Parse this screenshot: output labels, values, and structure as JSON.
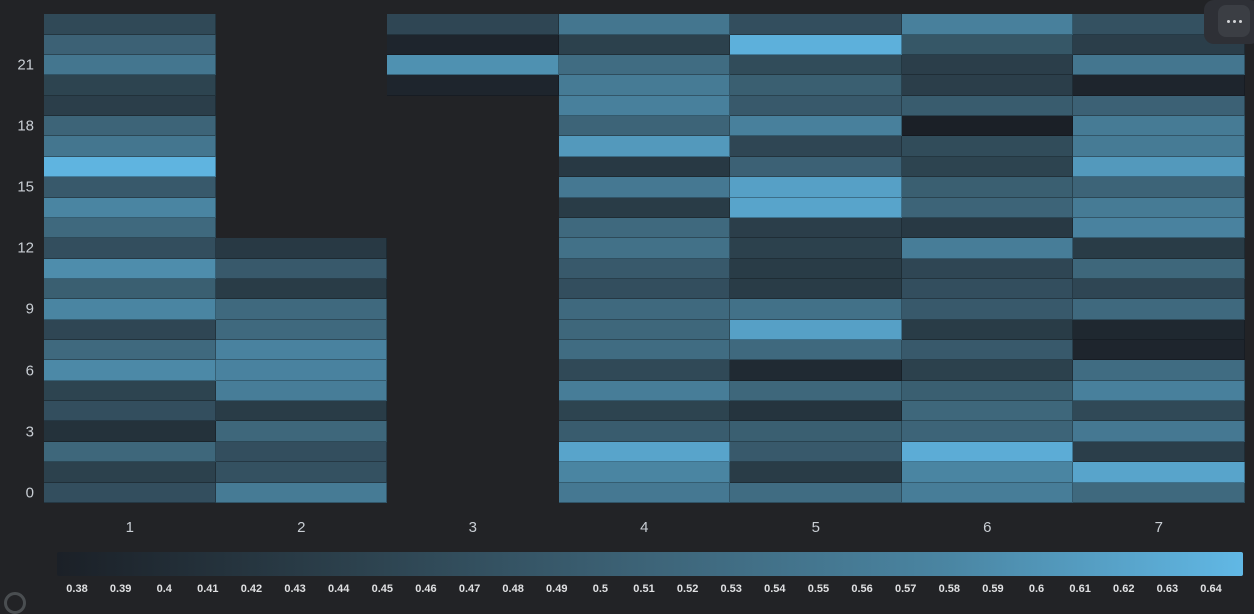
{
  "panel": {
    "background": "#222326",
    "menu_button": {
      "icon": "ellipsis-menu"
    }
  },
  "chart_data": {
    "type": "heatmap",
    "title": "",
    "x_categories": [
      "1",
      "2",
      "3",
      "4",
      "5",
      "6",
      "7"
    ],
    "y_axis": {
      "unit": "hour-of-day",
      "range": [
        0,
        23
      ],
      "ticks": [
        {
          "hour": 21,
          "label": "21"
        },
        {
          "hour": 18,
          "label": "18"
        },
        {
          "hour": 15,
          "label": "15"
        },
        {
          "hour": 12,
          "label": "12"
        },
        {
          "hour": 9,
          "label": "9"
        },
        {
          "hour": 6,
          "label": "6"
        },
        {
          "hour": 3,
          "label": "3"
        },
        {
          "hour": 0,
          "label": "0"
        }
      ]
    },
    "color_scale": {
      "min": 0.38,
      "max": 0.64,
      "stops": [
        "#1b2027",
        "#2c414d",
        "#3d6478",
        "#4a85a2",
        "#61b8e5"
      ],
      "tick_labels": [
        "0.38",
        "0.39",
        "0.4",
        "0.41",
        "0.42",
        "0.43",
        "0.44",
        "0.45",
        "0.46",
        "0.47",
        "0.48",
        "0.49",
        "0.5",
        "0.51",
        "0.52",
        "0.53",
        "0.54",
        "0.55",
        "0.56",
        "0.57",
        "0.58",
        "0.59",
        "0.6",
        "0.61",
        "0.62",
        "0.63",
        "0.64"
      ]
    },
    "series": [
      {
        "name": "1",
        "values_by_hour": [
          0.47,
          0.445,
          0.515,
          0.415,
          0.47,
          0.45,
          0.58,
          0.52,
          0.455,
          0.575,
          0.5,
          0.585,
          0.47,
          0.52,
          0.575,
          0.49,
          0.635,
          0.545,
          0.51,
          0.44,
          0.45,
          0.545,
          0.505,
          0.46
        ]
      },
      {
        "name": "2",
        "values_by_hour": [
          0.555,
          0.475,
          0.47,
          0.515,
          0.435,
          0.56,
          0.57,
          0.57,
          0.52,
          0.52,
          0.435,
          0.49,
          0.43,
          null,
          null,
          null,
          null,
          null,
          null,
          null,
          null,
          null,
          null,
          null
        ]
      },
      {
        "name": "3",
        "values_by_hour": [
          null,
          null,
          null,
          null,
          null,
          null,
          null,
          null,
          null,
          null,
          null,
          null,
          null,
          null,
          null,
          null,
          null,
          null,
          null,
          null,
          0.39,
          0.59,
          0.39,
          0.455
        ]
      },
      {
        "name": "4",
        "values_by_hour": [
          0.55,
          0.575,
          0.615,
          0.495,
          0.45,
          0.56,
          0.46,
          0.525,
          0.515,
          0.52,
          0.47,
          0.49,
          0.535,
          0.52,
          0.435,
          0.55,
          0.43,
          0.6,
          0.51,
          0.565,
          0.555,
          0.525,
          0.445,
          0.545
        ]
      },
      {
        "name": "5",
        "values_by_hour": [
          0.525,
          0.435,
          0.49,
          0.5,
          0.42,
          0.515,
          0.4,
          0.52,
          0.61,
          0.535,
          0.435,
          0.435,
          0.445,
          0.44,
          0.615,
          0.61,
          0.505,
          0.455,
          0.565,
          0.49,
          0.5,
          0.465,
          0.63,
          0.47
        ]
      },
      {
        "name": "6",
        "values_by_hour": [
          0.56,
          0.575,
          0.625,
          0.51,
          0.515,
          0.5,
          0.445,
          0.49,
          0.435,
          0.49,
          0.47,
          0.455,
          0.56,
          0.43,
          0.51,
          0.5,
          0.45,
          0.465,
          0.38,
          0.495,
          0.44,
          0.44,
          0.485,
          0.565
        ]
      },
      {
        "name": "7",
        "values_by_hour": [
          0.52,
          0.615,
          0.44,
          0.55,
          0.46,
          0.565,
          0.525,
          0.39,
          0.395,
          0.52,
          0.455,
          0.515,
          0.435,
          0.57,
          0.555,
          0.51,
          0.6,
          0.555,
          0.555,
          0.505,
          0.39,
          0.545,
          0.44,
          0.475
        ]
      }
    ],
    "legend_position": "bottom",
    "grid": false
  }
}
